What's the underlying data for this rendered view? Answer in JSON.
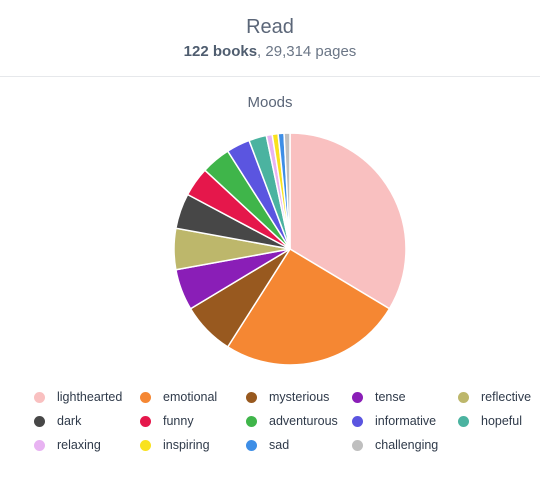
{
  "header": {
    "title": "Read",
    "books": "122 books",
    "pages": ", 29,314 pages"
  },
  "chart_data": {
    "type": "pie",
    "title": "Moods",
    "legend_placement": "bottom",
    "categories": [
      "lighthearted",
      "emotional",
      "mysterious",
      "tense",
      "reflective",
      "dark",
      "funny",
      "adventurous",
      "informative",
      "hopeful",
      "relaxing",
      "inspiring",
      "sad",
      "challenging"
    ],
    "values": [
      41,
      31,
      9,
      7,
      7,
      6,
      5,
      5,
      4,
      3,
      1,
      1,
      1,
      1
    ],
    "colors": [
      "#f9c0c0",
      "#f58733",
      "#98591f",
      "#8a1eb7",
      "#bdb76b",
      "#474747",
      "#e5174b",
      "#3fb54a",
      "#5b55e0",
      "#4bb3a0",
      "#e8b3f2",
      "#f9e21e",
      "#3e8ee6",
      "#bfbfbf"
    ]
  }
}
